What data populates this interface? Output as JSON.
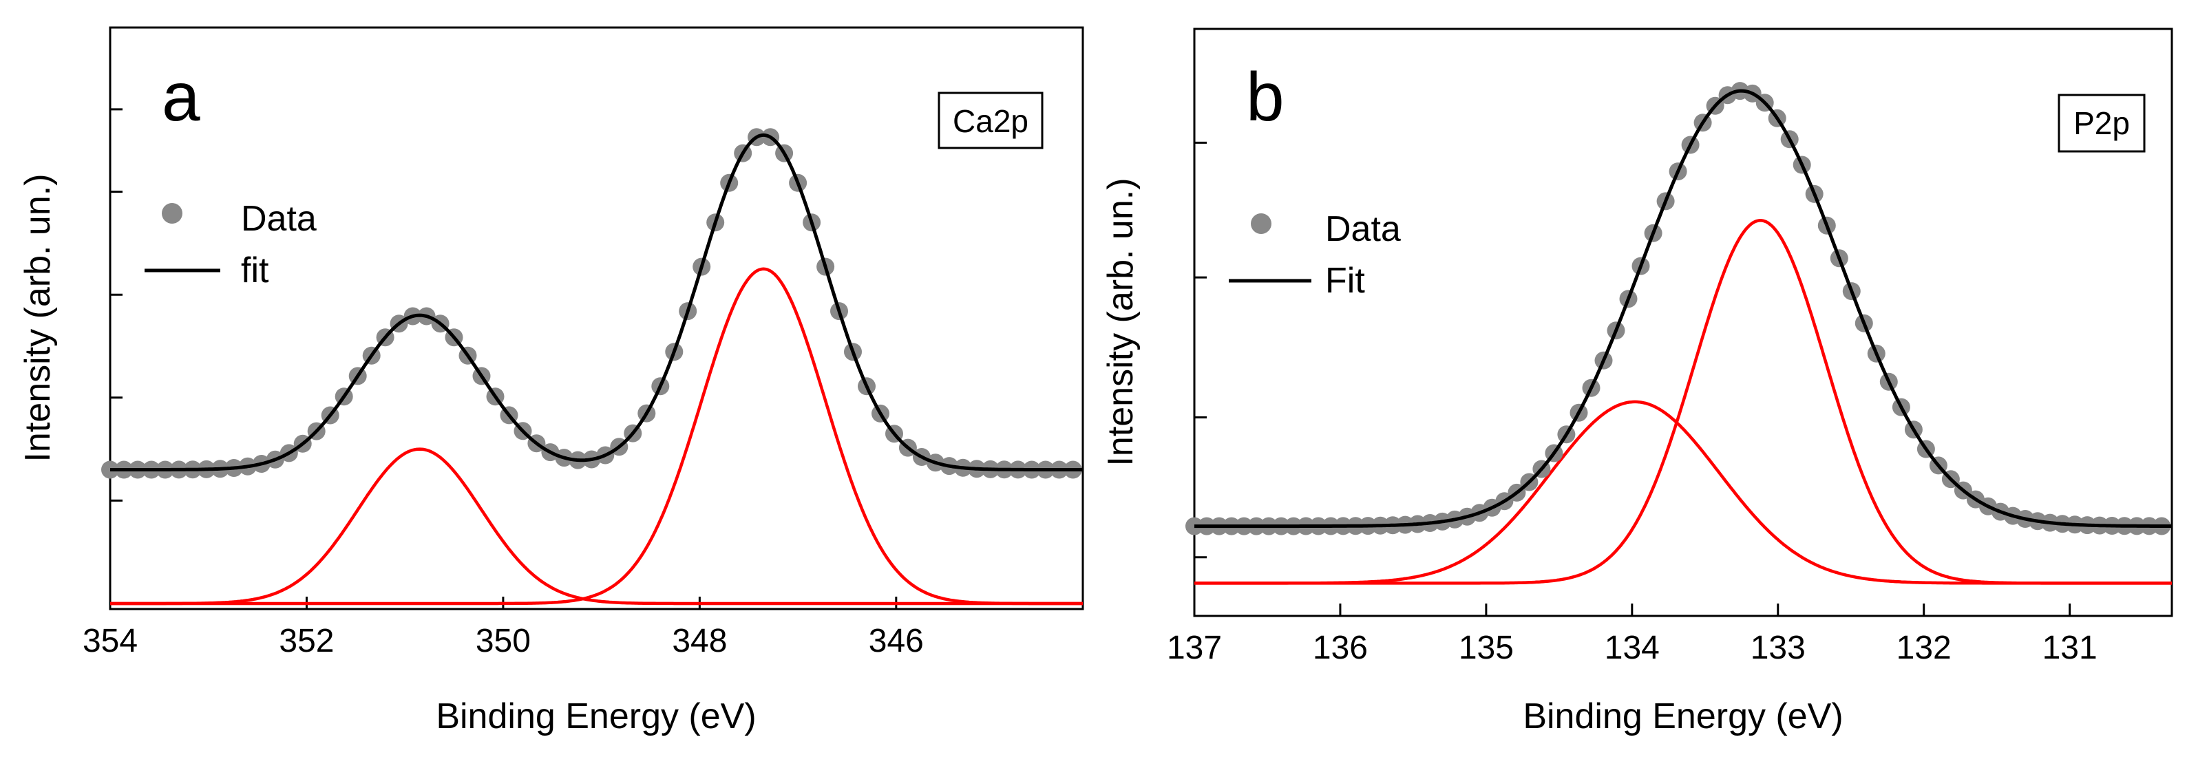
{
  "colors": {
    "data_points": "#888888",
    "fit_line": "#000000",
    "component_line": "#ff0000",
    "axes": "#000000",
    "background": "#ffffff"
  },
  "chart_data": [
    {
      "type": "scatter",
      "panel_letter": "a",
      "region_tag": "Ca2p",
      "xlabel": "Binding Energy (eV)",
      "ylabel": "Intensity (arb. un.)",
      "xlim": [
        354,
        344.1
      ],
      "ylim": [
        0,
        1.0
      ],
      "x_ticks": [
        354,
        352,
        350,
        348,
        346
      ],
      "x_tick_labels": [
        "354",
        "352",
        "350",
        "348",
        "346"
      ],
      "y_ticks": [
        0.2,
        0.4,
        0.6,
        0.8,
        0.96
      ],
      "legend": {
        "position": "upper-left",
        "data_label": "Data",
        "fit_label": "fit"
      },
      "baseline": 0.26,
      "components": [
        {
          "center": 350.85,
          "amplitude": 0.3,
          "sigma": 0.63,
          "offset": 0.0
        },
        {
          "center": 347.35,
          "amplitude": 0.65,
          "sigma": 0.63,
          "offset": 0.0
        }
      ],
      "fit_peaks": [
        {
          "center": 350.85,
          "amplitude": 0.3,
          "sigma": 0.63
        },
        {
          "center": 347.35,
          "amplitude": 0.65,
          "sigma": 0.63
        }
      ],
      "data_step": 0.14
    },
    {
      "type": "scatter",
      "panel_letter": "b",
      "region_tag": "P2p",
      "xlabel": "Binding Energy (eV)",
      "ylabel": "Intensity (arb. un.)",
      "xlim": [
        137,
        130.3
      ],
      "ylim": [
        0,
        1.0
      ],
      "x_ticks": [
        137,
        136,
        135,
        134,
        133,
        132,
        131
      ],
      "x_tick_labels": [
        "137",
        "136",
        "135",
        "134",
        "133",
        "132",
        "131"
      ],
      "y_ticks": [
        0.08,
        0.35,
        0.62,
        0.88
      ],
      "legend": {
        "position": "upper-left",
        "data_label": "Data",
        "fit_label": "Fit"
      },
      "baseline": 0.14,
      "components": [
        {
          "center": 133.98,
          "amplitude": 0.35,
          "sigma": 0.58,
          "offset": 0.03
        },
        {
          "center": 133.12,
          "amplitude": 0.7,
          "sigma": 0.45,
          "offset": 0.03
        }
      ],
      "fit_peaks": [
        {
          "center": 133.25,
          "amplitude": 0.84,
          "sigma": 0.68
        }
      ],
      "data_step": 0.085
    }
  ]
}
